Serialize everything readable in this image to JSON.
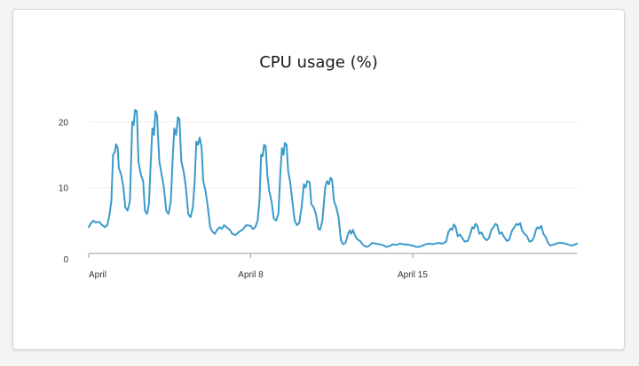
{
  "chart_data": {
    "type": "line",
    "title": "CPU usage (%)",
    "xlabel": "",
    "ylabel": "",
    "ylim": [
      0,
      21
    ],
    "yticks": [
      0,
      10,
      20
    ],
    "xticks": [
      {
        "day": 0,
        "label": "April"
      },
      {
        "day": 7,
        "label": "April 8"
      },
      {
        "day": 14,
        "label": "April 15"
      }
    ],
    "xlim_days": [
      0,
      21.1
    ],
    "grid": true,
    "legend": "none",
    "line_color": "#3c9ac9",
    "grid_color": "#ececec",
    "axis_color": "#9a9a9a",
    "series": [
      {
        "name": "",
        "points": [
          [
            0.0,
            4.0
          ],
          [
            0.1,
            4.6
          ],
          [
            0.2,
            5.0
          ],
          [
            0.3,
            4.7
          ],
          [
            0.45,
            4.8
          ],
          [
            0.55,
            4.4
          ],
          [
            0.7,
            4.0
          ],
          [
            0.8,
            4.3
          ],
          [
            0.9,
            6.0
          ],
          [
            0.98,
            8.0
          ],
          [
            1.05,
            15.0
          ],
          [
            1.12,
            15.3
          ],
          [
            1.18,
            16.6
          ],
          [
            1.25,
            16.0
          ],
          [
            1.3,
            13.0
          ],
          [
            1.4,
            12.0
          ],
          [
            1.5,
            10.0
          ],
          [
            1.58,
            7.0
          ],
          [
            1.68,
            6.5
          ],
          [
            1.78,
            8.0
          ],
          [
            1.88,
            20.0
          ],
          [
            1.94,
            19.5
          ],
          [
            2.0,
            21.8
          ],
          [
            2.08,
            21.6
          ],
          [
            2.15,
            14.0
          ],
          [
            2.25,
            12.0
          ],
          [
            2.35,
            11.0
          ],
          [
            2.43,
            6.5
          ],
          [
            2.52,
            6.0
          ],
          [
            2.6,
            7.5
          ],
          [
            2.68,
            14.0
          ],
          [
            2.75,
            19.0
          ],
          [
            2.82,
            18.0
          ],
          [
            2.88,
            21.6
          ],
          [
            2.95,
            21.0
          ],
          [
            3.05,
            14.0
          ],
          [
            3.15,
            12.0
          ],
          [
            3.25,
            10.0
          ],
          [
            3.35,
            6.5
          ],
          [
            3.45,
            6.0
          ],
          [
            3.55,
            8.0
          ],
          [
            3.62,
            14.0
          ],
          [
            3.7,
            19.0
          ],
          [
            3.78,
            18.0
          ],
          [
            3.85,
            20.7
          ],
          [
            3.92,
            20.4
          ],
          [
            4.0,
            14.0
          ],
          [
            4.1,
            12.5
          ],
          [
            4.2,
            10.0
          ],
          [
            4.3,
            6.0
          ],
          [
            4.4,
            5.5
          ],
          [
            4.5,
            7.0
          ],
          [
            4.58,
            11.0
          ],
          [
            4.65,
            17.0
          ],
          [
            4.72,
            16.5
          ],
          [
            4.8,
            17.6
          ],
          [
            4.88,
            16.0
          ],
          [
            4.95,
            11.0
          ],
          [
            5.05,
            9.5
          ],
          [
            5.15,
            7.0
          ],
          [
            5.25,
            4.0
          ],
          [
            5.35,
            3.3
          ],
          [
            5.45,
            3.0
          ],
          [
            5.55,
            3.6
          ],
          [
            5.65,
            4.0
          ],
          [
            5.75,
            3.7
          ],
          [
            5.85,
            4.3
          ],
          [
            5.95,
            4.0
          ],
          [
            6.1,
            3.6
          ],
          [
            6.2,
            3.0
          ],
          [
            6.35,
            2.8
          ],
          [
            6.5,
            3.3
          ],
          [
            6.65,
            3.6
          ],
          [
            6.8,
            4.3
          ],
          [
            7.0,
            4.2
          ],
          [
            7.1,
            3.7
          ],
          [
            7.2,
            4.0
          ],
          [
            7.3,
            5.0
          ],
          [
            7.38,
            8.0
          ],
          [
            7.45,
            15.0
          ],
          [
            7.52,
            14.8
          ],
          [
            7.58,
            16.5
          ],
          [
            7.65,
            16.3
          ],
          [
            7.72,
            12.0
          ],
          [
            7.8,
            9.5
          ],
          [
            7.9,
            8.0
          ],
          [
            8.0,
            5.3
          ],
          [
            8.1,
            5.0
          ],
          [
            8.2,
            6.0
          ],
          [
            8.28,
            12.0
          ],
          [
            8.35,
            16.0
          ],
          [
            8.42,
            15.0
          ],
          [
            8.48,
            16.8
          ],
          [
            8.55,
            16.5
          ],
          [
            8.62,
            12.5
          ],
          [
            8.7,
            11.0
          ],
          [
            8.8,
            8.0
          ],
          [
            8.9,
            5.0
          ],
          [
            9.0,
            4.3
          ],
          [
            9.1,
            4.6
          ],
          [
            9.2,
            7.0
          ],
          [
            9.3,
            10.5
          ],
          [
            9.38,
            10.0
          ],
          [
            9.45,
            11.0
          ],
          [
            9.55,
            10.8
          ],
          [
            9.62,
            7.5
          ],
          [
            9.72,
            7.0
          ],
          [
            9.82,
            6.0
          ],
          [
            9.92,
            3.8
          ],
          [
            10.0,
            3.6
          ],
          [
            10.1,
            5.0
          ],
          [
            10.22,
            10.0
          ],
          [
            10.3,
            11.0
          ],
          [
            10.38,
            10.5
          ],
          [
            10.45,
            11.5
          ],
          [
            10.52,
            11.2
          ],
          [
            10.6,
            8.0
          ],
          [
            10.7,
            7.0
          ],
          [
            10.8,
            5.5
          ],
          [
            10.9,
            2.0
          ],
          [
            11.0,
            1.4
          ],
          [
            11.1,
            1.6
          ],
          [
            11.2,
            2.8
          ],
          [
            11.28,
            3.5
          ],
          [
            11.35,
            3.0
          ],
          [
            11.42,
            3.6
          ],
          [
            11.5,
            2.8
          ],
          [
            11.6,
            2.2
          ],
          [
            11.75,
            1.8
          ],
          [
            11.85,
            1.3
          ],
          [
            12.0,
            1.0
          ],
          [
            12.1,
            1.1
          ],
          [
            12.25,
            1.6
          ],
          [
            12.4,
            1.5
          ],
          [
            12.55,
            1.4
          ],
          [
            12.7,
            1.3
          ],
          [
            12.85,
            1.0
          ],
          [
            13.0,
            1.1
          ],
          [
            13.15,
            1.4
          ],
          [
            13.3,
            1.3
          ],
          [
            13.45,
            1.5
          ],
          [
            13.6,
            1.4
          ],
          [
            13.8,
            1.3
          ],
          [
            14.0,
            1.2
          ],
          [
            14.15,
            1.0
          ],
          [
            14.3,
            1.0
          ],
          [
            14.5,
            1.3
          ],
          [
            14.7,
            1.5
          ],
          [
            14.9,
            1.4
          ],
          [
            15.1,
            1.6
          ],
          [
            15.3,
            1.5
          ],
          [
            15.45,
            1.8
          ],
          [
            15.55,
            3.3
          ],
          [
            15.65,
            3.8
          ],
          [
            15.72,
            3.6
          ],
          [
            15.78,
            4.4
          ],
          [
            15.85,
            4.1
          ],
          [
            15.95,
            2.6
          ],
          [
            16.05,
            2.9
          ],
          [
            16.15,
            2.3
          ],
          [
            16.25,
            1.8
          ],
          [
            16.38,
            1.9
          ],
          [
            16.48,
            2.8
          ],
          [
            16.58,
            4.0
          ],
          [
            16.65,
            3.8
          ],
          [
            16.72,
            4.5
          ],
          [
            16.8,
            4.2
          ],
          [
            16.88,
            3.0
          ],
          [
            16.98,
            3.2
          ],
          [
            17.08,
            2.4
          ],
          [
            17.2,
            2.0
          ],
          [
            17.3,
            2.3
          ],
          [
            17.4,
            3.6
          ],
          [
            17.5,
            4.0
          ],
          [
            17.58,
            4.5
          ],
          [
            17.66,
            4.3
          ],
          [
            17.75,
            3.0
          ],
          [
            17.85,
            3.2
          ],
          [
            17.95,
            2.5
          ],
          [
            18.08,
            1.9
          ],
          [
            18.18,
            2.1
          ],
          [
            18.3,
            3.5
          ],
          [
            18.4,
            4.0
          ],
          [
            18.48,
            4.5
          ],
          [
            18.56,
            4.3
          ],
          [
            18.65,
            4.6
          ],
          [
            18.73,
            3.5
          ],
          [
            18.83,
            3.0
          ],
          [
            18.93,
            2.7
          ],
          [
            19.05,
            1.8
          ],
          [
            19.15,
            1.9
          ],
          [
            19.25,
            2.5
          ],
          [
            19.33,
            3.6
          ],
          [
            19.4,
            4.0
          ],
          [
            19.48,
            3.8
          ],
          [
            19.56,
            4.2
          ],
          [
            19.65,
            3.0
          ],
          [
            19.75,
            2.5
          ],
          [
            19.85,
            1.6
          ],
          [
            19.95,
            1.2
          ],
          [
            20.05,
            1.3
          ],
          [
            20.15,
            1.4
          ],
          [
            20.3,
            1.6
          ],
          [
            20.45,
            1.6
          ],
          [
            20.6,
            1.5
          ],
          [
            20.75,
            1.3
          ],
          [
            20.9,
            1.2
          ],
          [
            21.1,
            1.5
          ]
        ]
      }
    ]
  }
}
